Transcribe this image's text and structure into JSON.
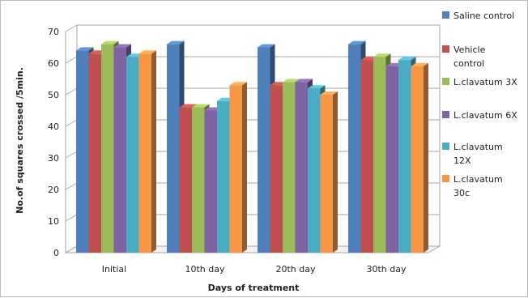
{
  "chart_data": {
    "type": "bar",
    "title": "",
    "xlabel": "Days of treatment",
    "ylabel": "No.of squares crossed /5min.",
    "categories": [
      "Initial",
      "10th day",
      "20th day",
      "30th day"
    ],
    "ylim": [
      0,
      70
    ],
    "yticks": [
      0,
      10,
      20,
      30,
      40,
      50,
      60,
      70
    ],
    "grid": true,
    "legend_position": "right",
    "series": [
      {
        "name": "Saline control",
        "legend_lines": [
          "Saline control"
        ],
        "color": "#4f81bd",
        "values": [
          64,
          66,
          65,
          66
        ]
      },
      {
        "name": "Vehicle control",
        "legend_lines": [
          "Vehicle",
          "control"
        ],
        "color": "#c0504d",
        "values": [
          63,
          46,
          53,
          61
        ]
      },
      {
        "name": "L.clavatum 3X",
        "legend_lines": [
          "L.clavatum 3X"
        ],
        "color": "#9bbb59",
        "values": [
          66,
          46,
          54,
          62
        ]
      },
      {
        "name": "L.clavatum 6X",
        "legend_lines": [
          "L.clavatum 6X"
        ],
        "color": "#8064a2",
        "values": [
          65,
          45,
          54,
          59
        ]
      },
      {
        "name": "L.clavatum 12X",
        "legend_lines": [
          "L.clavatum",
          "12X"
        ],
        "color": "#4bacc6",
        "values": [
          62,
          48,
          52,
          61
        ]
      },
      {
        "name": "L.clavatum 30c",
        "legend_lines": [
          "L.clavatum",
          "30c"
        ],
        "color": "#f79646",
        "values": [
          63,
          53,
          50,
          59
        ]
      }
    ]
  }
}
